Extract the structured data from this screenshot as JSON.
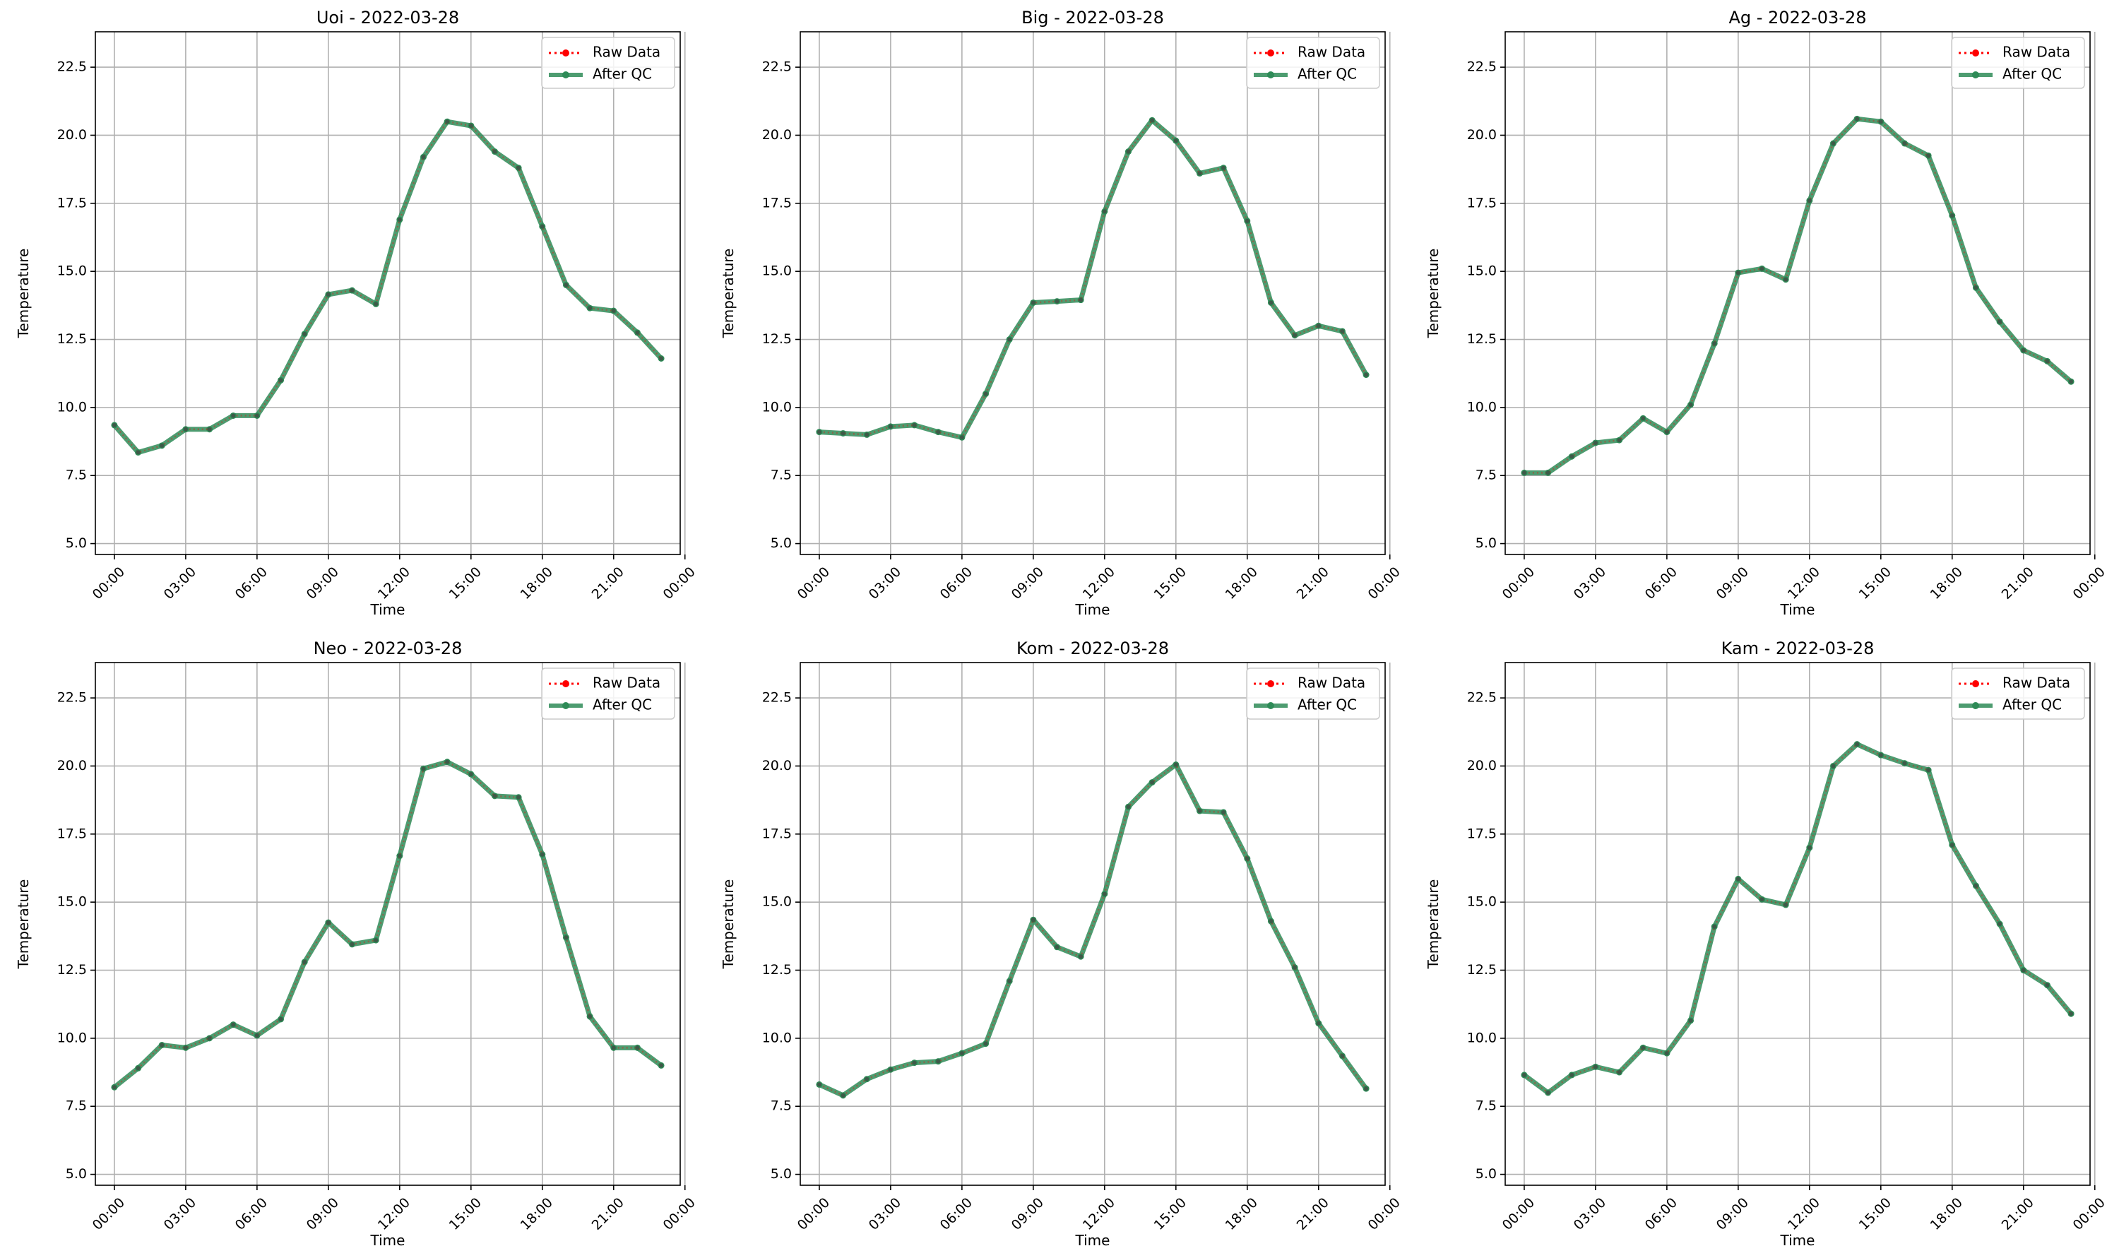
{
  "figure": {
    "background": "#ffffff"
  },
  "colors": {
    "raw": "#ff0000",
    "qc": "#2e8b57",
    "grid": "#b0b0b0",
    "legend_border": "#cccccc"
  },
  "legend": {
    "raw_label": "Raw Data",
    "qc_label": "After QC"
  },
  "chart_data": [
    {
      "type": "line",
      "title": "Uoi - 2022-03-28",
      "xlabel": "Time",
      "ylabel": "Temperature",
      "xlim_hours": [
        -0.8,
        23.8
      ],
      "ylim": [
        4.6,
        23.8
      ],
      "x_ticks": [
        "00:00",
        "03:00",
        "06:00",
        "09:00",
        "12:00",
        "15:00",
        "18:00",
        "21:00",
        "00:00"
      ],
      "y_ticks": [
        "5.0",
        "7.5",
        "10.0",
        "12.5",
        "15.0",
        "17.5",
        "20.0",
        "22.5"
      ],
      "grid": true,
      "legend_position": "top-right",
      "x_hours": [
        0,
        1,
        2,
        3,
        4,
        5,
        6,
        7,
        8,
        9,
        10,
        11,
        12,
        13,
        14,
        15,
        16,
        17,
        18,
        19,
        20,
        21,
        22,
        23
      ],
      "series": [
        {
          "name": "Raw Data",
          "values": [
            9.35,
            8.35,
            8.6,
            9.2,
            9.2,
            9.7,
            9.7,
            11.0,
            12.7,
            14.15,
            14.3,
            13.8,
            16.9,
            19.2,
            20.5,
            20.35,
            19.4,
            18.8,
            16.65,
            14.5,
            13.65,
            13.55,
            12.75,
            11.8
          ]
        },
        {
          "name": "After QC",
          "values": [
            9.35,
            8.35,
            8.6,
            9.2,
            9.2,
            9.7,
            9.7,
            11.0,
            12.7,
            14.15,
            14.3,
            13.8,
            16.9,
            19.2,
            20.5,
            20.35,
            19.4,
            18.8,
            16.65,
            14.5,
            13.65,
            13.55,
            12.75,
            11.8
          ]
        }
      ]
    },
    {
      "type": "line",
      "title": "Big - 2022-03-28",
      "xlabel": "Time",
      "ylabel": "Temperature",
      "xlim_hours": [
        -0.8,
        23.8
      ],
      "ylim": [
        4.6,
        23.8
      ],
      "x_ticks": [
        "00:00",
        "03:00",
        "06:00",
        "09:00",
        "12:00",
        "15:00",
        "18:00",
        "21:00",
        "00:00"
      ],
      "y_ticks": [
        "5.0",
        "7.5",
        "10.0",
        "12.5",
        "15.0",
        "17.5",
        "20.0",
        "22.5"
      ],
      "grid": true,
      "legend_position": "top-right",
      "x_hours": [
        0,
        1,
        2,
        3,
        4,
        5,
        6,
        7,
        8,
        9,
        10,
        11,
        12,
        13,
        14,
        15,
        16,
        17,
        18,
        19,
        20,
        21,
        22,
        23
      ],
      "series": [
        {
          "name": "Raw Data",
          "values": [
            9.1,
            9.05,
            9.0,
            9.3,
            9.35,
            9.1,
            8.9,
            10.5,
            12.5,
            13.85,
            13.9,
            13.95,
            17.2,
            19.4,
            20.55,
            19.8,
            18.6,
            18.8,
            16.85,
            13.85,
            12.65,
            13.0,
            12.8,
            11.2
          ]
        },
        {
          "name": "After QC",
          "values": [
            9.1,
            9.05,
            9.0,
            9.3,
            9.35,
            9.1,
            8.9,
            10.5,
            12.5,
            13.85,
            13.9,
            13.95,
            17.2,
            19.4,
            20.55,
            19.8,
            18.6,
            18.8,
            16.85,
            13.85,
            12.65,
            13.0,
            12.8,
            11.2
          ]
        }
      ]
    },
    {
      "type": "line",
      "title": "Ag - 2022-03-28",
      "xlabel": "Time",
      "ylabel": "Temperature",
      "xlim_hours": [
        -0.8,
        23.8
      ],
      "ylim": [
        4.6,
        23.8
      ],
      "x_ticks": [
        "00:00",
        "03:00",
        "06:00",
        "09:00",
        "12:00",
        "15:00",
        "18:00",
        "21:00",
        "00:00"
      ],
      "y_ticks": [
        "5.0",
        "7.5",
        "10.0",
        "12.5",
        "15.0",
        "17.5",
        "20.0",
        "22.5"
      ],
      "grid": true,
      "legend_position": "top-right",
      "x_hours": [
        0,
        1,
        2,
        3,
        4,
        5,
        6,
        7,
        8,
        9,
        10,
        11,
        12,
        13,
        14,
        15,
        16,
        17,
        18,
        19,
        20,
        21,
        22,
        23
      ],
      "series": [
        {
          "name": "Raw Data",
          "values": [
            7.6,
            7.6,
            8.2,
            8.7,
            8.8,
            9.6,
            9.1,
            10.1,
            12.35,
            14.95,
            15.1,
            14.7,
            17.6,
            19.7,
            20.6,
            20.5,
            19.7,
            19.25,
            17.05,
            14.4,
            13.15,
            12.1,
            11.7,
            10.95
          ]
        },
        {
          "name": "After QC",
          "values": [
            7.6,
            7.6,
            8.2,
            8.7,
            8.8,
            9.6,
            9.1,
            10.1,
            12.35,
            14.95,
            15.1,
            14.7,
            17.6,
            19.7,
            20.6,
            20.5,
            19.7,
            19.25,
            17.05,
            14.4,
            13.15,
            12.1,
            11.7,
            10.95
          ]
        }
      ]
    },
    {
      "type": "line",
      "title": "Neo - 2022-03-28",
      "xlabel": "Time",
      "ylabel": "Temperature",
      "xlim_hours": [
        -0.8,
        23.8
      ],
      "ylim": [
        4.6,
        23.8
      ],
      "x_ticks": [
        "00:00",
        "03:00",
        "06:00",
        "09:00",
        "12:00",
        "15:00",
        "18:00",
        "21:00",
        "00:00"
      ],
      "y_ticks": [
        "5.0",
        "7.5",
        "10.0",
        "12.5",
        "15.0",
        "17.5",
        "20.0",
        "22.5"
      ],
      "grid": true,
      "legend_position": "top-right",
      "x_hours": [
        0,
        1,
        2,
        3,
        4,
        5,
        6,
        7,
        8,
        9,
        10,
        11,
        12,
        13,
        14,
        15,
        16,
        17,
        18,
        19,
        20,
        21,
        22,
        23
      ],
      "series": [
        {
          "name": "Raw Data",
          "values": [
            8.2,
            8.9,
            9.75,
            9.65,
            10.0,
            10.5,
            10.1,
            10.7,
            12.8,
            14.25,
            13.45,
            13.6,
            16.7,
            19.9,
            20.15,
            19.7,
            18.9,
            18.85,
            16.75,
            13.7,
            10.8,
            9.65,
            9.65,
            9.0
          ]
        },
        {
          "name": "After QC",
          "values": [
            8.2,
            8.9,
            9.75,
            9.65,
            10.0,
            10.5,
            10.1,
            10.7,
            12.8,
            14.25,
            13.45,
            13.6,
            16.7,
            19.9,
            20.15,
            19.7,
            18.9,
            18.85,
            16.75,
            13.7,
            10.8,
            9.65,
            9.65,
            9.0
          ]
        }
      ]
    },
    {
      "type": "line",
      "title": "Kom - 2022-03-28",
      "xlabel": "Time",
      "ylabel": "Temperature",
      "xlim_hours": [
        -0.8,
        23.8
      ],
      "ylim": [
        4.6,
        23.8
      ],
      "x_ticks": [
        "00:00",
        "03:00",
        "06:00",
        "09:00",
        "12:00",
        "15:00",
        "18:00",
        "21:00",
        "00:00"
      ],
      "y_ticks": [
        "5.0",
        "7.5",
        "10.0",
        "12.5",
        "15.0",
        "17.5",
        "20.0",
        "22.5"
      ],
      "grid": true,
      "legend_position": "top-right",
      "x_hours": [
        0,
        1,
        2,
        3,
        4,
        5,
        6,
        7,
        8,
        9,
        10,
        11,
        12,
        13,
        14,
        15,
        16,
        17,
        18,
        19,
        20,
        21,
        22,
        23
      ],
      "series": [
        {
          "name": "Raw Data",
          "values": [
            8.3,
            7.9,
            8.5,
            8.85,
            9.1,
            9.15,
            9.45,
            9.8,
            12.1,
            14.35,
            13.35,
            13.0,
            15.3,
            18.5,
            19.4,
            20.05,
            18.35,
            18.3,
            16.6,
            14.3,
            12.6,
            10.55,
            9.35,
            8.15
          ]
        },
        {
          "name": "After QC",
          "values": [
            8.3,
            7.9,
            8.5,
            8.85,
            9.1,
            9.15,
            9.45,
            9.8,
            12.1,
            14.35,
            13.35,
            13.0,
            15.3,
            18.5,
            19.4,
            20.05,
            18.35,
            18.3,
            16.6,
            14.3,
            12.6,
            10.55,
            9.35,
            8.15
          ]
        }
      ]
    },
    {
      "type": "line",
      "title": "Kam - 2022-03-28",
      "xlabel": "Time",
      "ylabel": "Temperature",
      "xlim_hours": [
        -0.8,
        23.8
      ],
      "ylim": [
        4.6,
        23.8
      ],
      "x_ticks": [
        "00:00",
        "03:00",
        "06:00",
        "09:00",
        "12:00",
        "15:00",
        "18:00",
        "21:00",
        "00:00"
      ],
      "y_ticks": [
        "5.0",
        "7.5",
        "10.0",
        "12.5",
        "15.0",
        "17.5",
        "20.0",
        "22.5"
      ],
      "grid": true,
      "legend_position": "top-right",
      "x_hours": [
        0,
        1,
        2,
        3,
        4,
        5,
        6,
        7,
        8,
        9,
        10,
        11,
        12,
        13,
        14,
        15,
        16,
        17,
        18,
        19,
        20,
        21,
        22,
        23
      ],
      "series": [
        {
          "name": "Raw Data",
          "values": [
            8.65,
            8.0,
            8.65,
            8.95,
            8.75,
            9.65,
            9.45,
            10.65,
            14.1,
            15.85,
            15.1,
            14.9,
            17.0,
            20.0,
            20.8,
            20.4,
            20.1,
            19.85,
            17.1,
            15.6,
            14.2,
            12.5,
            11.95,
            10.9
          ]
        },
        {
          "name": "After QC",
          "values": [
            8.65,
            8.0,
            8.65,
            8.95,
            8.75,
            9.65,
            9.45,
            10.65,
            14.1,
            15.85,
            15.1,
            14.9,
            17.0,
            20.0,
            20.8,
            20.4,
            20.1,
            19.85,
            17.1,
            15.6,
            14.2,
            12.5,
            11.95,
            10.9
          ]
        }
      ]
    }
  ]
}
